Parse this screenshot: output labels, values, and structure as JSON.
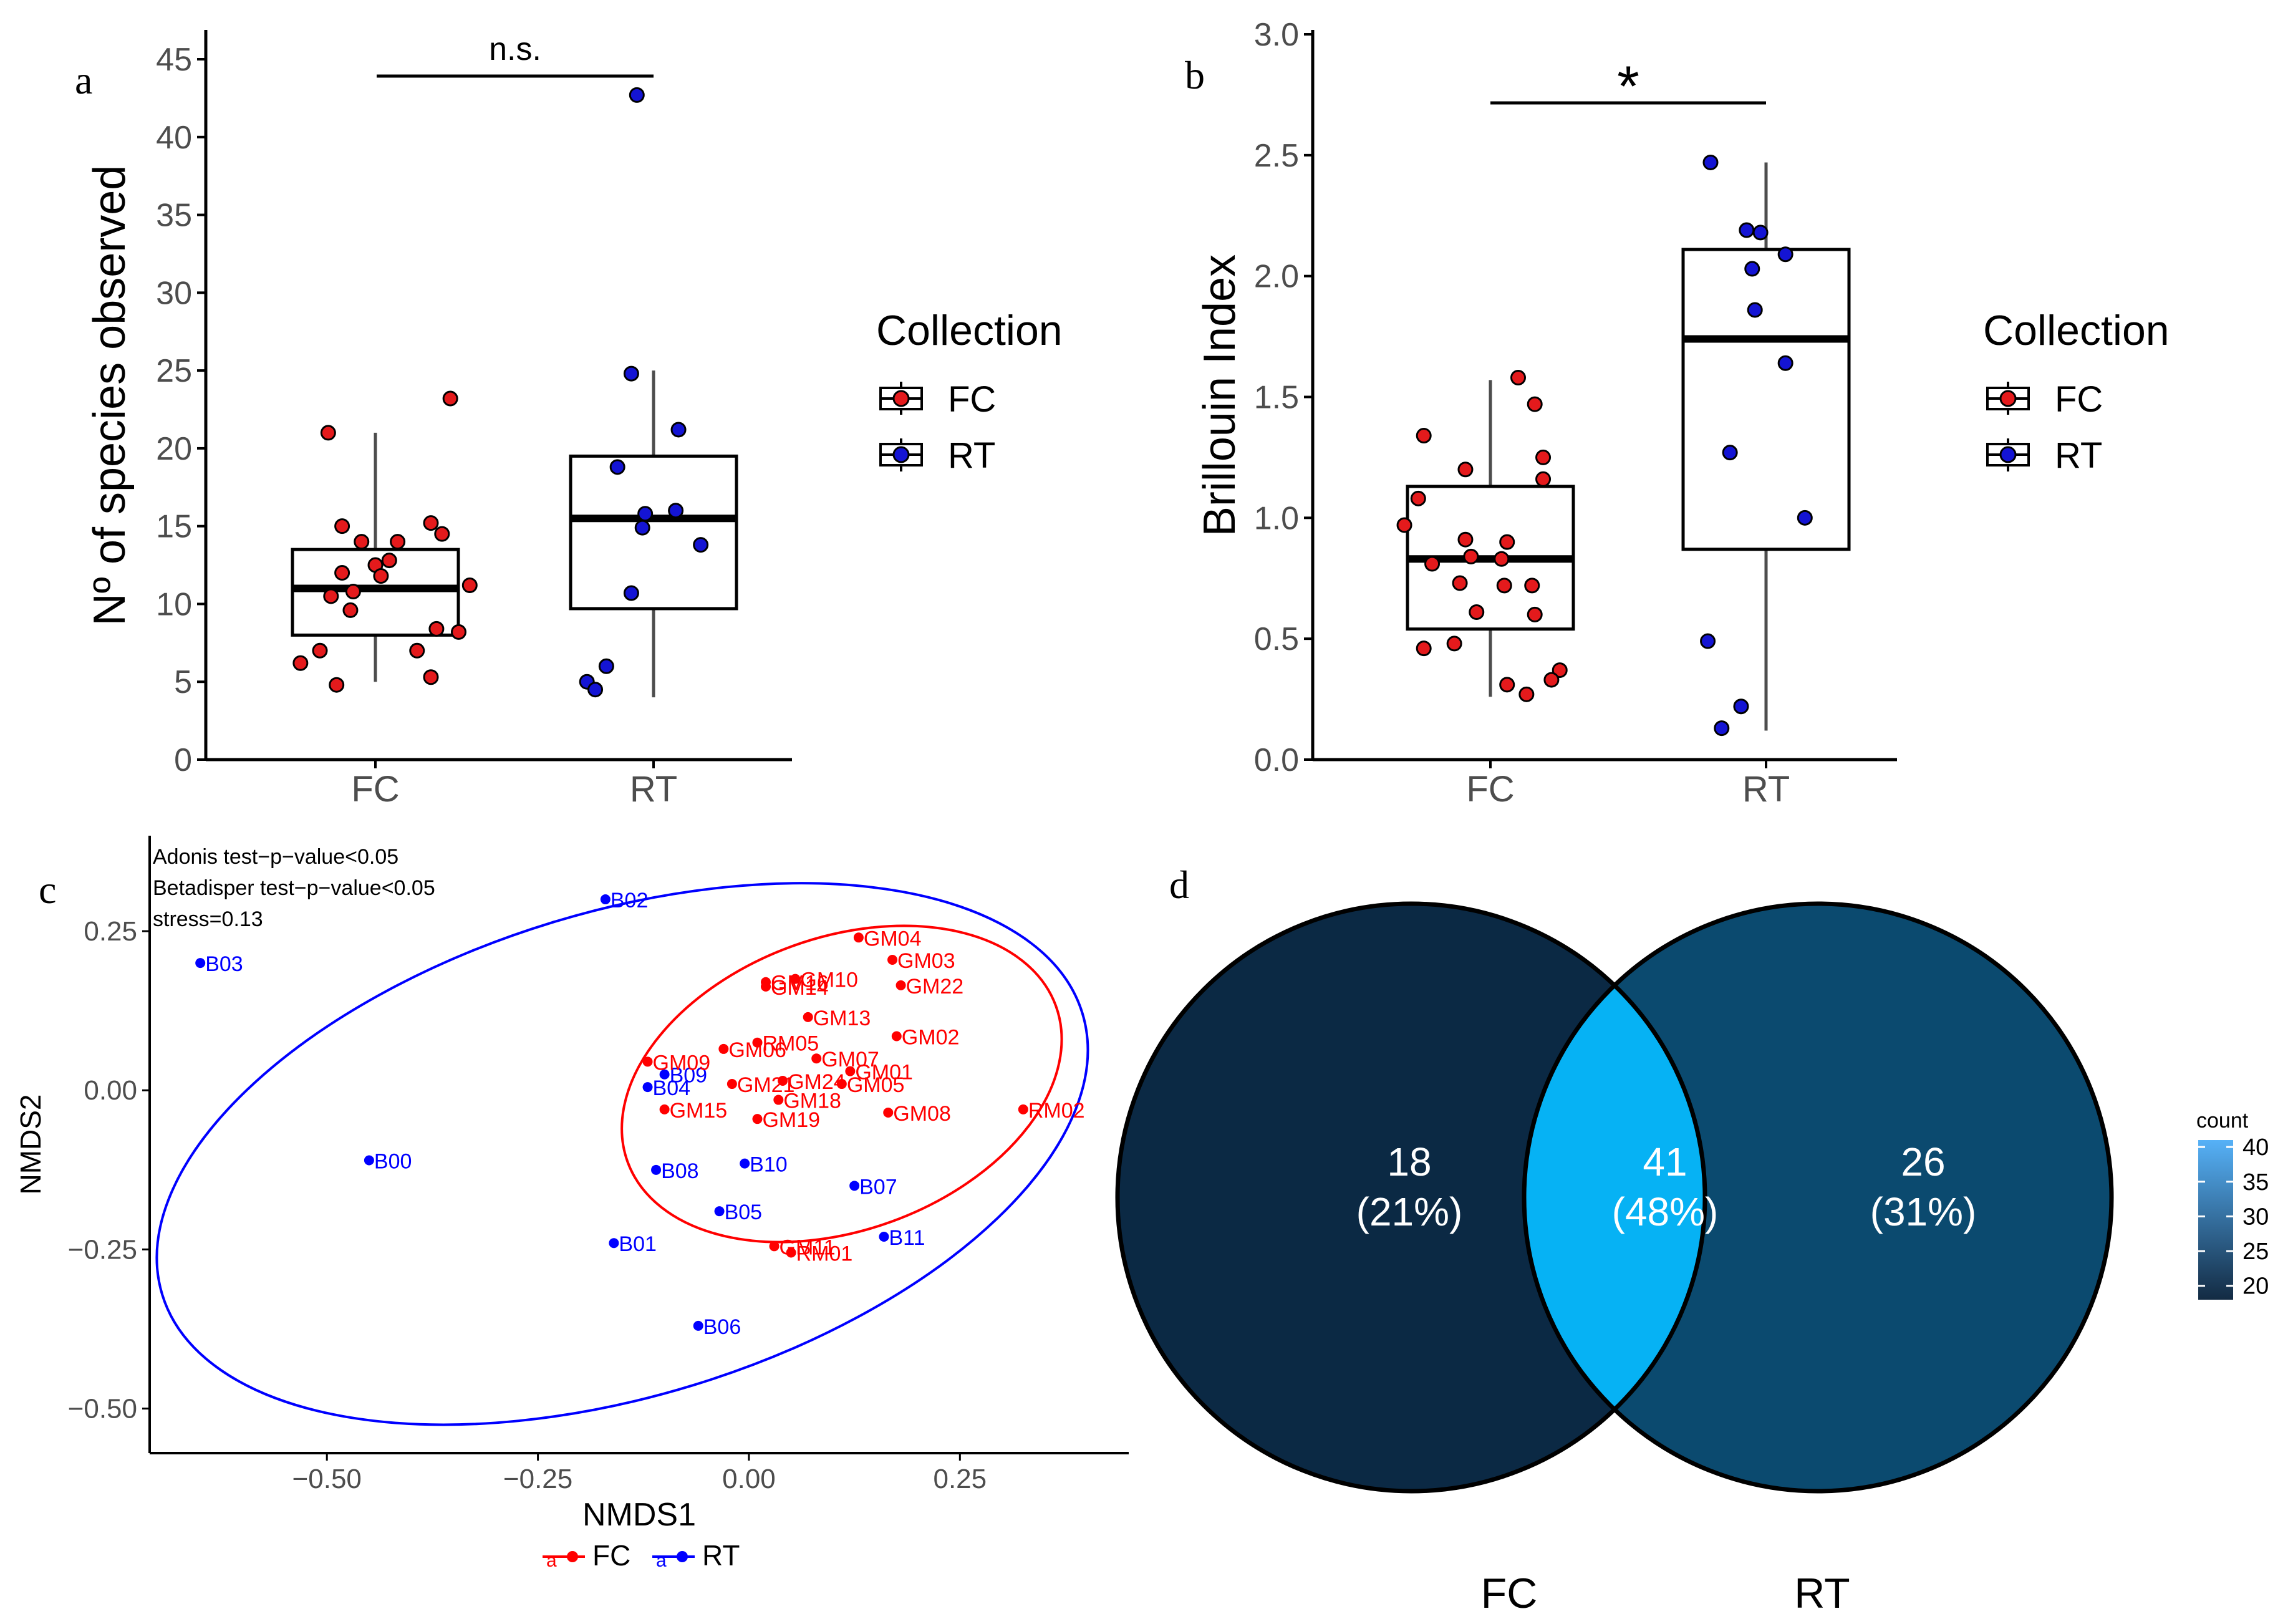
{
  "figure": {
    "panel_labels": [
      "a",
      "b",
      "c",
      "d"
    ]
  },
  "colors": {
    "fc": "#e41a1c",
    "rt": "#1414d4",
    "fc_line": "#ff0000",
    "rt_line": "#0000ff",
    "axis": "#000000",
    "tick_text": "#4d4d4d",
    "venn_fc": "#0b2944",
    "venn_rt": "#0b4a6f",
    "venn_overlap": "#06b2f4",
    "legend_low": "#132b43",
    "legend_high": "#56b1f7"
  },
  "chart_data": [
    {
      "id": "a",
      "type": "box",
      "title": "",
      "xlabel": "",
      "ylabel": "Nº of species observed",
      "categories": [
        "FC",
        "RT"
      ],
      "ylim": [
        0,
        45
      ],
      "yticks": [
        0,
        5,
        10,
        15,
        20,
        25,
        30,
        35,
        40,
        45
      ],
      "significance": "n.s.",
      "legend_title": "Collection",
      "legend_items": [
        "FC",
        "RT"
      ],
      "boxes": [
        {
          "name": "FC",
          "min": 5,
          "q1": 8,
          "median": 11,
          "q3": 13.5,
          "max": 21
        },
        {
          "name": "RT",
          "min": 4,
          "q1": 9.7,
          "median": 15.5,
          "q3": 19.5,
          "max": 25
        }
      ],
      "points": [
        {
          "group": "FC",
          "x": -0.17,
          "y": 21
        },
        {
          "group": "FC",
          "x": 0.27,
          "y": 23.2
        },
        {
          "group": "FC",
          "x": -0.12,
          "y": 15
        },
        {
          "group": "FC",
          "x": 0.2,
          "y": 15.2
        },
        {
          "group": "FC",
          "x": 0.08,
          "y": 14
        },
        {
          "group": "FC",
          "x": 0.24,
          "y": 14.5
        },
        {
          "group": "FC",
          "x": -0.05,
          "y": 14
        },
        {
          "group": "FC",
          "x": 0.05,
          "y": 12.8
        },
        {
          "group": "FC",
          "x": 0.0,
          "y": 12.5
        },
        {
          "group": "FC",
          "x": -0.12,
          "y": 12
        },
        {
          "group": "FC",
          "x": 0.02,
          "y": 11.8
        },
        {
          "group": "FC",
          "x": 0.34,
          "y": 11.2
        },
        {
          "group": "FC",
          "x": -0.08,
          "y": 10.8
        },
        {
          "group": "FC",
          "x": -0.16,
          "y": 10.5
        },
        {
          "group": "FC",
          "x": -0.09,
          "y": 9.6
        },
        {
          "group": "FC",
          "x": 0.22,
          "y": 8.4
        },
        {
          "group": "FC",
          "x": 0.3,
          "y": 8.2
        },
        {
          "group": "FC",
          "x": -0.2,
          "y": 7
        },
        {
          "group": "FC",
          "x": 0.15,
          "y": 7
        },
        {
          "group": "FC",
          "x": -0.27,
          "y": 6.2
        },
        {
          "group": "FC",
          "x": 0.2,
          "y": 5.3
        },
        {
          "group": "FC",
          "x": -0.14,
          "y": 4.8
        },
        {
          "group": "RT",
          "x": -0.06,
          "y": 42.7
        },
        {
          "group": "RT",
          "x": -0.08,
          "y": 24.8
        },
        {
          "group": "RT",
          "x": 0.09,
          "y": 21.2
        },
        {
          "group": "RT",
          "x": -0.13,
          "y": 18.8
        },
        {
          "group": "RT",
          "x": -0.03,
          "y": 15.8
        },
        {
          "group": "RT",
          "x": 0.08,
          "y": 16
        },
        {
          "group": "RT",
          "x": -0.04,
          "y": 14.9
        },
        {
          "group": "RT",
          "x": 0.17,
          "y": 13.8
        },
        {
          "group": "RT",
          "x": -0.08,
          "y": 10.7
        },
        {
          "group": "RT",
          "x": -0.17,
          "y": 6
        },
        {
          "group": "RT",
          "x": -0.24,
          "y": 5
        },
        {
          "group": "RT",
          "x": -0.21,
          "y": 4.5
        }
      ]
    },
    {
      "id": "b",
      "type": "box",
      "title": "",
      "xlabel": "",
      "ylabel": "Brillouin Index",
      "categories": [
        "FC",
        "RT"
      ],
      "ylim": [
        0,
        3
      ],
      "yticks": [
        "0.0",
        "0.5",
        "1.0",
        "1.5",
        "2.0",
        "2.5",
        "3.0"
      ],
      "significance": "*",
      "legend_title": "Collection",
      "legend_items": [
        "FC",
        "RT"
      ],
      "boxes": [
        {
          "name": "FC",
          "min": 0.26,
          "q1": 0.54,
          "median": 0.83,
          "q3": 1.13,
          "max": 1.57
        },
        {
          "name": "RT",
          "min": 0.12,
          "q1": 0.87,
          "median": 1.74,
          "q3": 2.11,
          "max": 2.47
        }
      ],
      "points": [
        {
          "group": "FC",
          "x": 0.1,
          "y": 1.58
        },
        {
          "group": "FC",
          "x": 0.16,
          "y": 1.47
        },
        {
          "group": "FC",
          "x": -0.24,
          "y": 1.34
        },
        {
          "group": "FC",
          "x": 0.19,
          "y": 1.25
        },
        {
          "group": "FC",
          "x": -0.09,
          "y": 1.2
        },
        {
          "group": "FC",
          "x": 0.19,
          "y": 1.16
        },
        {
          "group": "FC",
          "x": -0.26,
          "y": 1.08
        },
        {
          "group": "FC",
          "x": -0.31,
          "y": 0.97
        },
        {
          "group": "FC",
          "x": -0.09,
          "y": 0.91
        },
        {
          "group": "FC",
          "x": 0.06,
          "y": 0.9
        },
        {
          "group": "FC",
          "x": -0.07,
          "y": 0.84
        },
        {
          "group": "FC",
          "x": 0.04,
          "y": 0.83
        },
        {
          "group": "FC",
          "x": -0.21,
          "y": 0.81
        },
        {
          "group": "FC",
          "x": -0.11,
          "y": 0.73
        },
        {
          "group": "FC",
          "x": 0.05,
          "y": 0.72
        },
        {
          "group": "FC",
          "x": 0.15,
          "y": 0.72
        },
        {
          "group": "FC",
          "x": -0.05,
          "y": 0.61
        },
        {
          "group": "FC",
          "x": 0.16,
          "y": 0.6
        },
        {
          "group": "FC",
          "x": -0.13,
          "y": 0.48
        },
        {
          "group": "FC",
          "x": -0.24,
          "y": 0.46
        },
        {
          "group": "FC",
          "x": 0.25,
          "y": 0.37
        },
        {
          "group": "FC",
          "x": 0.22,
          "y": 0.33
        },
        {
          "group": "FC",
          "x": 0.06,
          "y": 0.31
        },
        {
          "group": "FC",
          "x": 0.13,
          "y": 0.27
        },
        {
          "group": "RT",
          "x": -0.2,
          "y": 2.47
        },
        {
          "group": "RT",
          "x": -0.02,
          "y": 2.18
        },
        {
          "group": "RT",
          "x": -0.07,
          "y": 2.19
        },
        {
          "group": "RT",
          "x": 0.07,
          "y": 2.09
        },
        {
          "group": "RT",
          "x": -0.05,
          "y": 2.03
        },
        {
          "group": "RT",
          "x": -0.04,
          "y": 1.86
        },
        {
          "group": "RT",
          "x": 0.07,
          "y": 1.64
        },
        {
          "group": "RT",
          "x": -0.13,
          "y": 1.27
        },
        {
          "group": "RT",
          "x": 0.14,
          "y": 1.0
        },
        {
          "group": "RT",
          "x": -0.21,
          "y": 0.49
        },
        {
          "group": "RT",
          "x": -0.09,
          "y": 0.22
        },
        {
          "group": "RT",
          "x": -0.16,
          "y": 0.13
        }
      ]
    },
    {
      "id": "c",
      "type": "scatter",
      "title": "",
      "xlabel": "NMDS1",
      "ylabel": "NMDS2",
      "xlim": [
        -0.71,
        0.45
      ],
      "ylim": [
        -0.57,
        0.4
      ],
      "xticks": [
        "−0.50",
        "−0.25",
        "0.00",
        "0.25"
      ],
      "xtick_values": [
        -0.5,
        -0.25,
        0,
        0.25
      ],
      "yticks": [
        "−0.50",
        "−0.25",
        "0.00",
        "0.25"
      ],
      "ytick_values": [
        -0.5,
        -0.25,
        0,
        0.25
      ],
      "annotations": [
        "Adonis test−p−value<0.05",
        "Betadisper test−p−value<0.05",
        "stress=0.13"
      ],
      "legend_items": [
        "FC",
        "RT"
      ],
      "ellipses": [
        {
          "group": "RT",
          "cx": -0.15,
          "cy": -0.1,
          "rx": 0.57,
          "ry": 0.38,
          "angle_deg": -17
        },
        {
          "group": "FC",
          "cx": 0.11,
          "cy": 0.01,
          "rx": 0.27,
          "ry": 0.23,
          "angle_deg": -20
        }
      ],
      "points": [
        {
          "group": "RT",
          "label": "B02",
          "x": -0.17,
          "y": 0.3
        },
        {
          "group": "RT",
          "label": "B03",
          "x": -0.65,
          "y": 0.2
        },
        {
          "group": "RT",
          "label": "B00",
          "x": -0.45,
          "y": -0.11
        },
        {
          "group": "RT",
          "label": "B04",
          "x": -0.12,
          "y": 0.005
        },
        {
          "group": "RT",
          "label": "B09",
          "x": -0.1,
          "y": 0.025
        },
        {
          "group": "RT",
          "label": "B08",
          "x": -0.11,
          "y": -0.125
        },
        {
          "group": "RT",
          "label": "B10",
          "x": -0.005,
          "y": -0.115
        },
        {
          "group": "RT",
          "label": "B05",
          "x": -0.035,
          "y": -0.19
        },
        {
          "group": "RT",
          "label": "B07",
          "x": 0.125,
          "y": -0.15
        },
        {
          "group": "RT",
          "label": "B01",
          "x": -0.16,
          "y": -0.24
        },
        {
          "group": "RT",
          "label": "B11",
          "x": 0.16,
          "y": -0.23
        },
        {
          "group": "RT",
          "label": "B06",
          "x": -0.06,
          "y": -0.37
        },
        {
          "group": "FC",
          "label": "GM04",
          "x": 0.13,
          "y": 0.24
        },
        {
          "group": "FC",
          "label": "GM03",
          "x": 0.17,
          "y": 0.205
        },
        {
          "group": "FC",
          "label": "GM22",
          "x": 0.18,
          "y": 0.165
        },
        {
          "group": "FC",
          "label": "GM10",
          "x": 0.055,
          "y": 0.175
        },
        {
          "group": "FC",
          "label": "GM16",
          "x": 0.02,
          "y": 0.17
        },
        {
          "group": "FC",
          "label": "GM14",
          "x": 0.02,
          "y": 0.163
        },
        {
          "group": "FC",
          "label": "GM13",
          "x": 0.07,
          "y": 0.115
        },
        {
          "group": "FC",
          "label": "GM02",
          "x": 0.175,
          "y": 0.085
        },
        {
          "group": "FC",
          "label": "RM05",
          "x": 0.01,
          "y": 0.075
        },
        {
          "group": "FC",
          "label": "GM06",
          "x": -0.03,
          "y": 0.065
        },
        {
          "group": "FC",
          "label": "GM09",
          "x": -0.12,
          "y": 0.045
        },
        {
          "group": "FC",
          "label": "GM07",
          "x": 0.08,
          "y": 0.05
        },
        {
          "group": "FC",
          "label": "GM01",
          "x": 0.12,
          "y": 0.03
        },
        {
          "group": "FC",
          "label": "GM21",
          "x": -0.02,
          "y": 0.01
        },
        {
          "group": "FC",
          "label": "GM24",
          "x": 0.04,
          "y": 0.015
        },
        {
          "group": "FC",
          "label": "GM05",
          "x": 0.11,
          "y": 0.01
        },
        {
          "group": "FC",
          "label": "GM18",
          "x": 0.035,
          "y": -0.015
        },
        {
          "group": "FC",
          "label": "GM15",
          "x": -0.1,
          "y": -0.03
        },
        {
          "group": "FC",
          "label": "GM19",
          "x": 0.01,
          "y": -0.045
        },
        {
          "group": "FC",
          "label": "GM08",
          "x": 0.165,
          "y": -0.035
        },
        {
          "group": "FC",
          "label": "RM02",
          "x": 0.325,
          "y": -0.03
        },
        {
          "group": "FC",
          "label": "GM11",
          "x": 0.03,
          "y": -0.245
        },
        {
          "group": "FC",
          "label": "RM01",
          "x": 0.05,
          "y": -0.255
        }
      ]
    },
    {
      "id": "d",
      "type": "venn",
      "sets": [
        "FC",
        "RT"
      ],
      "regions": [
        {
          "name": "FC only",
          "count": 18,
          "label": "18",
          "pct": "(21%)"
        },
        {
          "name": "FC ∩ RT",
          "count": 41,
          "label": "41",
          "pct": "(48%)"
        },
        {
          "name": "RT only",
          "count": 26,
          "label": "26",
          "pct": "(31%)"
        }
      ],
      "legend_title": "count",
      "legend_range": [
        18,
        41
      ],
      "legend_ticks": [
        "20",
        "25",
        "30",
        "35",
        "40"
      ],
      "legend_tick_values": [
        20,
        25,
        30,
        35,
        40
      ]
    }
  ]
}
